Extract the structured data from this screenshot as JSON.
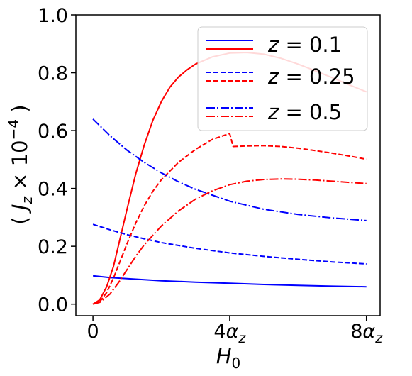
{
  "chart_data": {
    "type": "line",
    "xlabel": "H₀",
    "ylabel": "( J_z × 10⁻⁴ )",
    "x_unit": "α_z",
    "xlim": [
      -0.5,
      8.4
    ],
    "ylim": [
      -0.04,
      1.0
    ],
    "x_ticks": [
      {
        "value": 0,
        "label": "0"
      },
      {
        "value": 4,
        "label": "4α_z"
      },
      {
        "value": 8,
        "label": "8α_z"
      }
    ],
    "y_ticks": [
      {
        "value": 0.0,
        "label": "0.0"
      },
      {
        "value": 0.2,
        "label": "0.2"
      },
      {
        "value": 0.4,
        "label": "0.4"
      },
      {
        "value": 0.6,
        "label": "0.6"
      },
      {
        "value": 0.8,
        "label": "0.8"
      },
      {
        "value": 1.0,
        "label": "1.0"
      }
    ],
    "grid": false,
    "legend_position": "top-right",
    "legend": [
      {
        "label": "z = 0.1",
        "style": "solid"
      },
      {
        "label": "z = 0.25",
        "style": "dashed"
      },
      {
        "label": "z = 0.5",
        "style": "dashdot"
      }
    ],
    "colors": {
      "blue": "#0000ff",
      "red": "#ff0000"
    },
    "series": [
      {
        "id": "blue-z0.1",
        "color": "#0000ff",
        "style": "solid",
        "x": [
          0,
          0.5,
          1,
          2,
          3,
          4,
          5,
          6,
          7,
          8
        ],
        "y": [
          0.098,
          0.092,
          0.088,
          0.081,
          0.076,
          0.072,
          0.068,
          0.065,
          0.062,
          0.06
        ]
      },
      {
        "id": "red-z0.1",
        "color": "#ff0000",
        "style": "solid",
        "x": [
          0,
          0.2,
          0.4,
          0.6,
          0.8,
          1.0,
          1.25,
          1.5,
          1.75,
          2.0,
          2.25,
          2.5,
          2.75,
          3.0,
          3.5,
          4.0,
          4.5,
          5.0,
          5.5,
          6.0,
          6.5,
          7.0,
          7.5,
          8.0
        ],
        "y": [
          0.0,
          0.015,
          0.06,
          0.13,
          0.23,
          0.33,
          0.45,
          0.55,
          0.635,
          0.7,
          0.75,
          0.785,
          0.81,
          0.83,
          0.855,
          0.868,
          0.87,
          0.864,
          0.85,
          0.83,
          0.807,
          0.783,
          0.758,
          0.734
        ]
      },
      {
        "id": "blue-z0.25",
        "color": "#0000ff",
        "style": "dashed",
        "x": [
          0,
          0.5,
          1,
          1.5,
          2,
          3,
          4,
          5,
          6,
          7,
          8
        ],
        "y": [
          0.276,
          0.257,
          0.24,
          0.226,
          0.213,
          0.193,
          0.177,
          0.165,
          0.155,
          0.146,
          0.139
        ]
      },
      {
        "id": "red-z0.25",
        "color": "#ff0000",
        "style": "dashed",
        "x": [
          0,
          0.2,
          0.4,
          0.6,
          0.8,
          1.0,
          1.25,
          1.5,
          1.75,
          2.0,
          2.5,
          3.0,
          3.5,
          4.0,
          4.0,
          4.1,
          4.5,
          5.0,
          5.5,
          6.0,
          6.5,
          7.0,
          7.5,
          8.0
        ],
        "y": [
          0.0,
          0.008,
          0.04,
          0.09,
          0.15,
          0.21,
          0.28,
          0.34,
          0.39,
          0.43,
          0.49,
          0.535,
          0.57,
          0.59,
          0.59,
          0.545,
          0.547,
          0.548,
          0.545,
          0.539,
          0.531,
          0.522,
          0.512,
          0.501
        ]
      },
      {
        "id": "blue-z0.5",
        "color": "#0000ff",
        "style": "dashdot",
        "x": [
          0,
          0.5,
          1,
          1.5,
          2,
          2.5,
          3,
          4,
          5,
          6,
          7,
          8
        ],
        "y": [
          0.64,
          0.582,
          0.532,
          0.49,
          0.454,
          0.423,
          0.397,
          0.356,
          0.328,
          0.31,
          0.298,
          0.289
        ]
      },
      {
        "id": "red-z0.5",
        "color": "#ff0000",
        "style": "dashdot",
        "x": [
          0,
          0.2,
          0.5,
          0.75,
          1.0,
          1.25,
          1.5,
          2.0,
          2.5,
          3.0,
          3.5,
          4.0,
          4.5,
          5.0,
          5.5,
          6.0,
          6.5,
          7.0,
          7.5,
          8.0
        ],
        "y": [
          0.0,
          0.006,
          0.035,
          0.075,
          0.12,
          0.165,
          0.205,
          0.27,
          0.322,
          0.363,
          0.392,
          0.413,
          0.425,
          0.431,
          0.433,
          0.432,
          0.429,
          0.425,
          0.421,
          0.417
        ]
      }
    ]
  }
}
